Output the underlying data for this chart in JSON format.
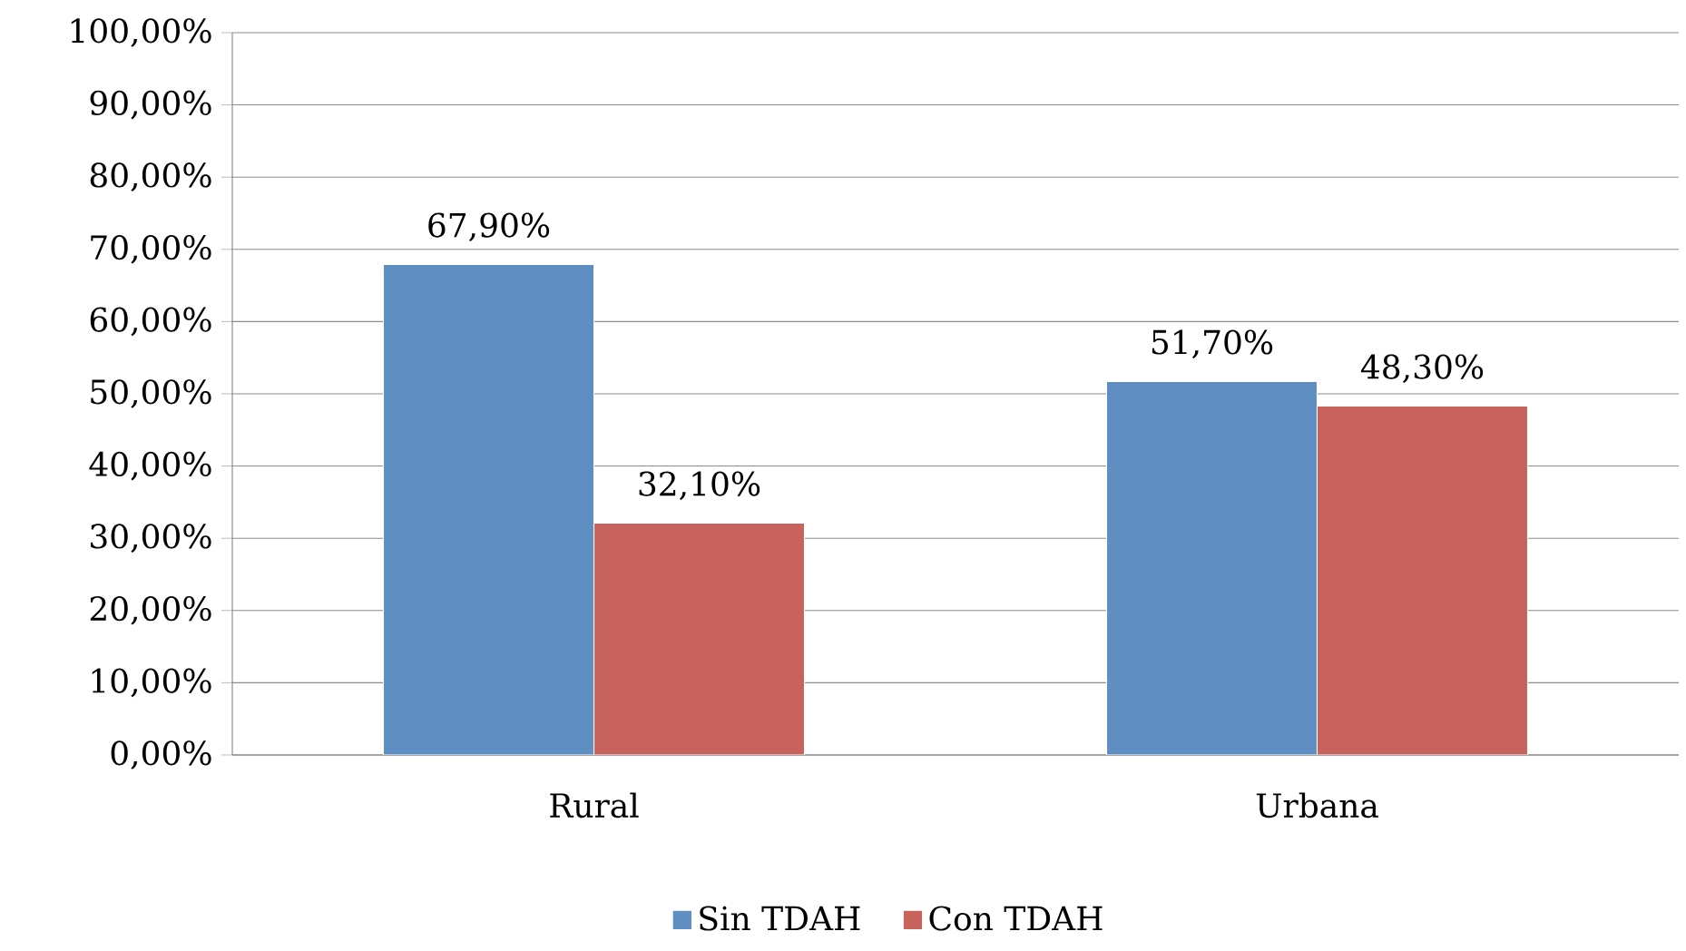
{
  "chart_data": {
    "type": "bar",
    "categories": [
      "Rural",
      "Urbana"
    ],
    "series": [
      {
        "name": "Sin TDAH",
        "color": "#5f8fc2",
        "values": [
          67.9,
          51.7
        ],
        "value_labels": [
          "67,90%",
          "51,70%"
        ]
      },
      {
        "name": "Con TDAH",
        "color": "#c7635c",
        "values": [
          32.1,
          48.3
        ],
        "value_labels": [
          "32,10%",
          "48,30%"
        ]
      }
    ],
    "ylim": [
      0,
      100
    ],
    "yticks": [
      {
        "value": 0,
        "label": "0,00%"
      },
      {
        "value": 10,
        "label": "10,00%"
      },
      {
        "value": 20,
        "label": "20,00%"
      },
      {
        "value": 30,
        "label": "30,00%"
      },
      {
        "value": 40,
        "label": "40,00%"
      },
      {
        "value": 50,
        "label": "50,00%"
      },
      {
        "value": 60,
        "label": "60,00%"
      },
      {
        "value": 70,
        "label": "70,00%"
      },
      {
        "value": 80,
        "label": "80,00%"
      },
      {
        "value": 90,
        "label": "90,00%"
      },
      {
        "value": 100,
        "label": "100,00%"
      }
    ],
    "grid": "y",
    "legend": "bottom"
  }
}
